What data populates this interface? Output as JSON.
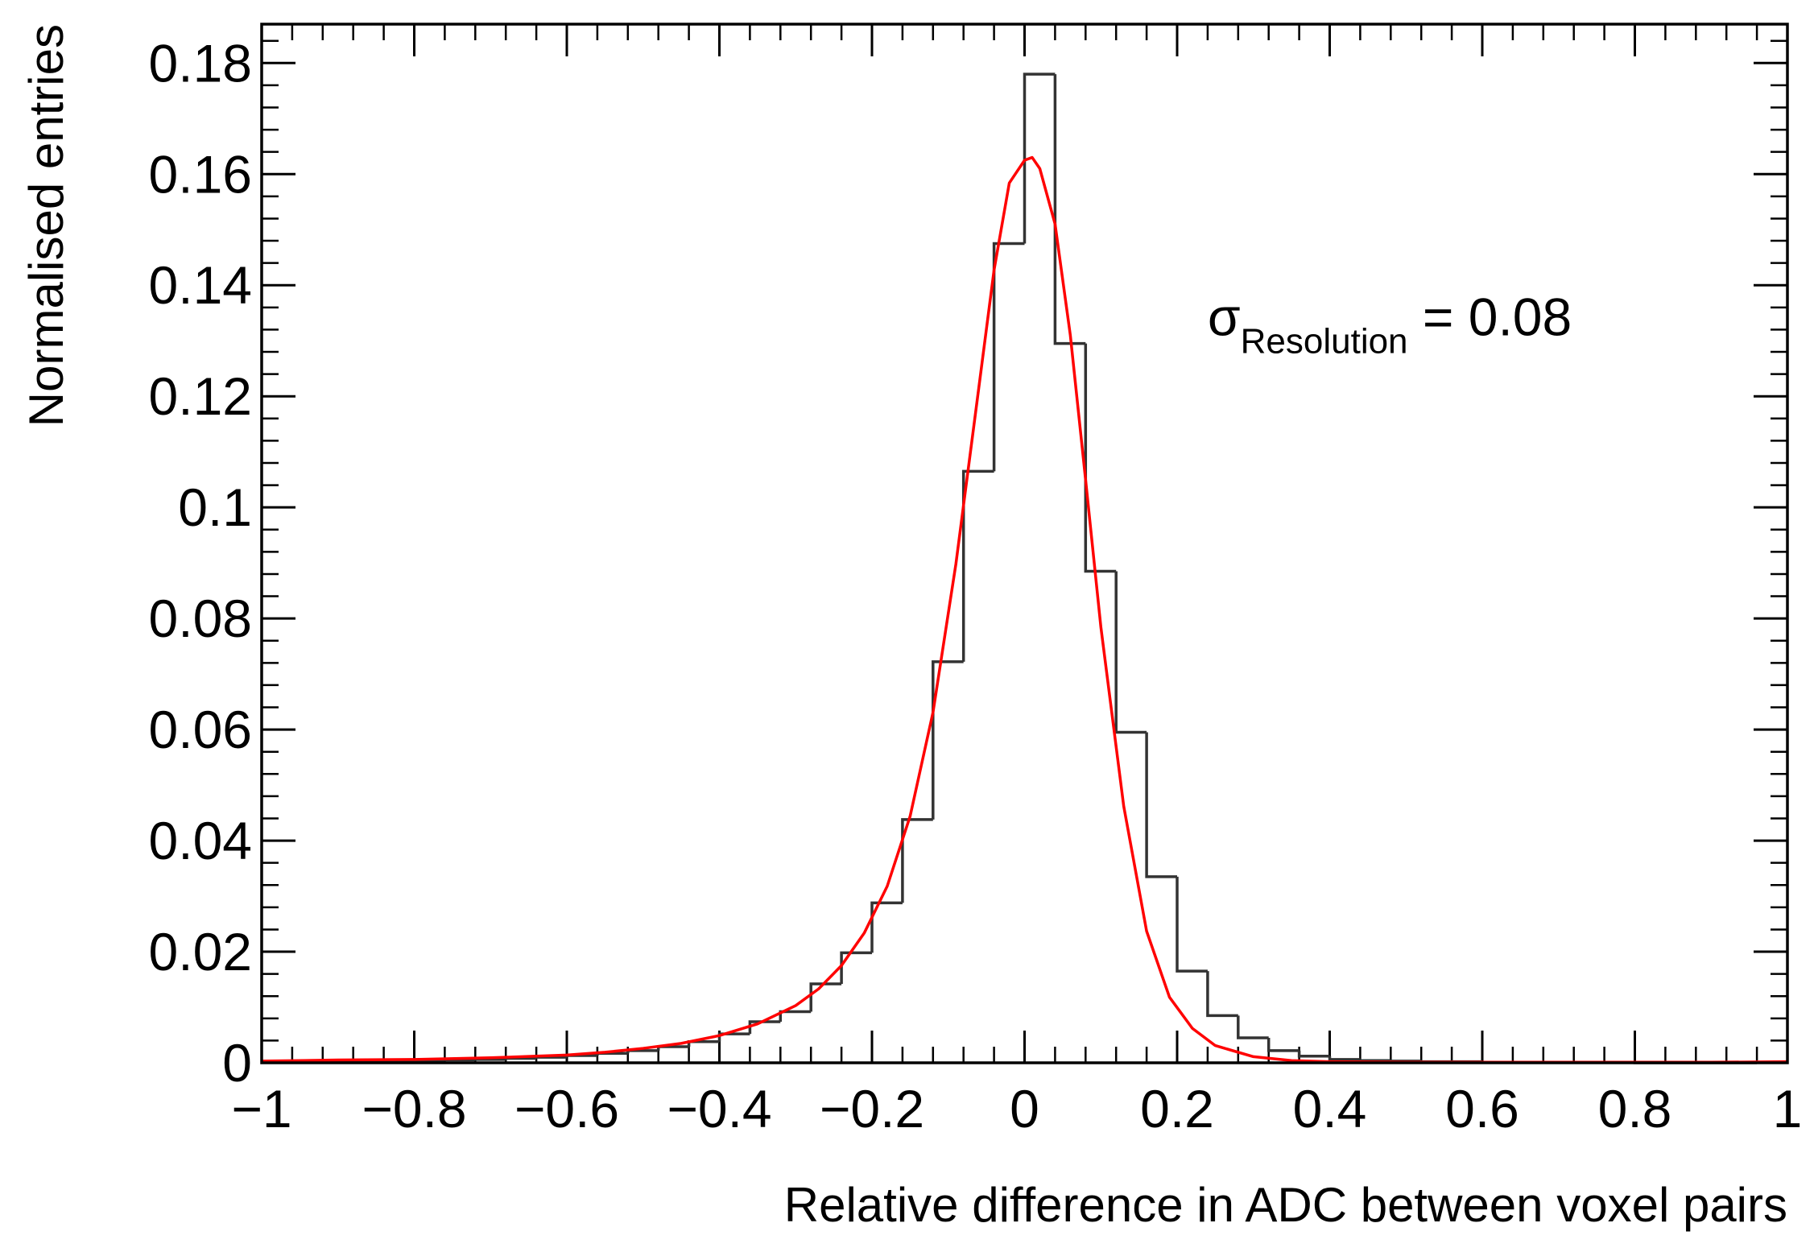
{
  "chart_data": {
    "type": "histogram",
    "title": "",
    "xlabel": "Relative difference in ADC between voxel pairs",
    "ylabel": "Normalised entries",
    "xlim": [
      -1,
      1
    ],
    "ylim": [
      0,
      0.187
    ],
    "x_ticks": [
      -1,
      -0.8,
      -0.6,
      -0.4,
      -0.2,
      0,
      0.2,
      0.4,
      0.6,
      0.8,
      1
    ],
    "x_tick_labels": [
      "−1",
      "−0.8",
      "−0.6",
      "−0.4",
      "−0.2",
      "0",
      "0.2",
      "0.4",
      "0.6",
      "0.8",
      "1"
    ],
    "y_ticks": [
      0,
      0.02,
      0.04,
      0.06,
      0.08,
      0.1,
      0.12,
      0.14,
      0.16,
      0.18
    ],
    "y_tick_labels": [
      "0",
      "0.02",
      "0.04",
      "0.06",
      "0.08",
      "0.1",
      "0.12",
      "0.14",
      "0.16",
      "0.18"
    ],
    "annotation": {
      "symbol": "σ",
      "subscript": "Resolution",
      "text": " = 0.08",
      "x": 0.24,
      "y": 0.131
    },
    "series": [
      {
        "name": "Histogram",
        "color": "#333333",
        "bin_edges": [
          -1.0,
          -0.96,
          -0.92,
          -0.88,
          -0.84,
          -0.8,
          -0.76,
          -0.72,
          -0.68,
          -0.64,
          -0.6,
          -0.56,
          -0.52,
          -0.48,
          -0.44,
          -0.4,
          -0.36,
          -0.32,
          -0.28,
          -0.24,
          -0.2,
          -0.16,
          -0.12,
          -0.08,
          -0.04,
          0.0,
          0.04,
          0.08,
          0.12,
          0.16,
          0.2,
          0.24,
          0.28,
          0.32,
          0.36,
          0.4,
          0.44,
          0.48,
          0.52,
          0.56,
          0.6,
          0.64,
          0.68,
          0.72,
          0.76,
          0.8,
          0.84,
          0.88,
          0.92,
          0.96,
          1.0
        ],
        "values": [
          0.0001,
          0.0001,
          0.0002,
          0.0002,
          0.0003,
          0.0004,
          0.0005,
          0.0006,
          0.0008,
          0.001,
          0.0013,
          0.0017,
          0.0022,
          0.0029,
          0.0038,
          0.0052,
          0.0074,
          0.0092,
          0.0142,
          0.0198,
          0.0288,
          0.0438,
          0.0722,
          0.1065,
          0.1475,
          0.178,
          0.1295,
          0.0885,
          0.0595,
          0.0335,
          0.0165,
          0.0085,
          0.0045,
          0.0022,
          0.0012,
          0.0006,
          0.0004,
          0.0003,
          0.0002,
          0.0002,
          0.0001,
          0.0001,
          0.0001,
          0.0001,
          0.0001,
          0.0,
          0.0,
          0.0,
          0.0,
          0.0001
        ]
      },
      {
        "name": "Fit",
        "color": "#ff0000",
        "x": [
          -1.0,
          -0.9,
          -0.8,
          -0.7,
          -0.6,
          -0.55,
          -0.5,
          -0.45,
          -0.4,
          -0.35,
          -0.3,
          -0.27,
          -0.24,
          -0.21,
          -0.18,
          -0.15,
          -0.12,
          -0.09,
          -0.06,
          -0.04,
          -0.02,
          0.0,
          0.01,
          0.02,
          0.04,
          0.06,
          0.08,
          0.1,
          0.13,
          0.16,
          0.19,
          0.22,
          0.25,
          0.3,
          0.35,
          0.4,
          0.5,
          0.6,
          0.7,
          0.8,
          0.9,
          1.0
        ],
        "y": [
          0.0003,
          0.0005,
          0.0006,
          0.0009,
          0.0014,
          0.0019,
          0.0026,
          0.0035,
          0.0049,
          0.007,
          0.0103,
          0.0133,
          0.0175,
          0.0234,
          0.0318,
          0.0444,
          0.0631,
          0.0898,
          0.1215,
          0.1427,
          0.1584,
          0.1625,
          0.163,
          0.161,
          0.151,
          0.131,
          0.105,
          0.0785,
          0.0462,
          0.0237,
          0.0118,
          0.0062,
          0.0031,
          0.0011,
          0.0004,
          0.0002,
          0.0001,
          0.0001,
          0.0001,
          0.0001,
          0.0001,
          0.0002
        ]
      }
    ]
  }
}
